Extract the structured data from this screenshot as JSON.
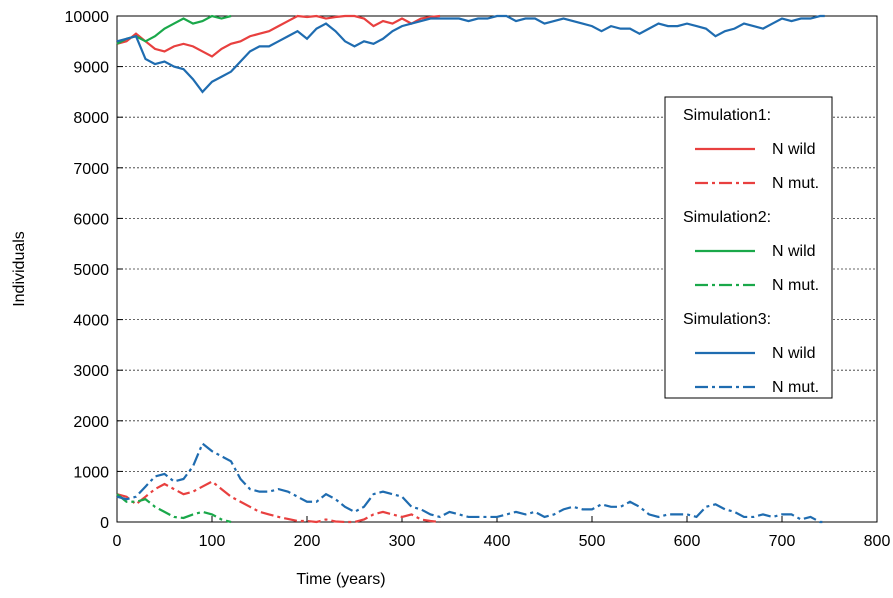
{
  "chart_data": {
    "type": "line",
    "xlabel": "Time (years)",
    "ylabel": "Individuals",
    "xlim": [
      0,
      800
    ],
    "xticks": [
      0,
      100,
      200,
      300,
      400,
      500,
      600,
      700,
      800
    ],
    "ylim": [
      0,
      10000
    ],
    "yticks": [
      0,
      1000,
      2000,
      3000,
      4000,
      5000,
      6000,
      7000,
      8000,
      9000,
      10000
    ],
    "grid": true,
    "legend": "right",
    "series": [
      {
        "group": "Simulation1:",
        "name": "N wild",
        "color": "#e8403f",
        "dash": "solid",
        "x": [
          0,
          10,
          20,
          30,
          40,
          50,
          60,
          70,
          80,
          90,
          100,
          110,
          120,
          130,
          140,
          150,
          160,
          170,
          180,
          190,
          200,
          210,
          220,
          230,
          240,
          250,
          260,
          270,
          280,
          290,
          300,
          310,
          320,
          330,
          340
        ],
        "values": [
          9450,
          9500,
          9650,
          9500,
          9350,
          9300,
          9400,
          9450,
          9400,
          9300,
          9200,
          9350,
          9450,
          9500,
          9600,
          9650,
          9700,
          9800,
          9900,
          10000,
          9980,
          10000,
          9950,
          9980,
          10000,
          10000,
          9950,
          9800,
          9900,
          9850,
          9950,
          9850,
          9950,
          9980,
          10000
        ]
      },
      {
        "group": "Simulation1:",
        "name": "N mut.",
        "color": "#e8403f",
        "dash": "dashdot",
        "x": [
          0,
          10,
          20,
          30,
          40,
          50,
          60,
          70,
          80,
          90,
          100,
          110,
          120,
          130,
          140,
          150,
          160,
          170,
          180,
          190,
          200,
          210,
          220,
          230,
          240,
          250,
          260,
          270,
          280,
          290,
          300,
          310,
          320,
          330,
          340
        ],
        "values": [
          550,
          500,
          350,
          500,
          650,
          750,
          650,
          550,
          600,
          700,
          800,
          650,
          500,
          400,
          300,
          200,
          150,
          100,
          60,
          20,
          20,
          0,
          50,
          10,
          0,
          0,
          50,
          150,
          200,
          150,
          100,
          150,
          50,
          20,
          0
        ]
      },
      {
        "group": "Simulation2:",
        "name": "N wild",
        "color": "#1aa84a",
        "dash": "solid",
        "x": [
          0,
          10,
          20,
          30,
          40,
          50,
          60,
          70,
          80,
          90,
          100,
          110,
          120
        ],
        "values": [
          9450,
          9550,
          9600,
          9500,
          9600,
          9750,
          9850,
          9950,
          9850,
          9900,
          10000,
          9950,
          10000
        ]
      },
      {
        "group": "Simulation2:",
        "name": "N mut.",
        "color": "#1aa84a",
        "dash": "dashdot",
        "x": [
          0,
          10,
          20,
          30,
          40,
          50,
          60,
          70,
          80,
          90,
          100,
          110,
          120
        ],
        "values": [
          550,
          400,
          400,
          450,
          300,
          200,
          100,
          80,
          150,
          200,
          150,
          50,
          0
        ]
      },
      {
        "group": "Simulation3:",
        "name": "N wild",
        "color": "#1f6cb0",
        "dash": "solid",
        "x": [
          0,
          10,
          20,
          30,
          40,
          50,
          60,
          70,
          80,
          90,
          100,
          110,
          120,
          130,
          140,
          150,
          160,
          170,
          180,
          190,
          200,
          210,
          220,
          230,
          240,
          250,
          260,
          270,
          280,
          290,
          300,
          310,
          320,
          330,
          340,
          350,
          360,
          370,
          380,
          390,
          400,
          410,
          420,
          430,
          440,
          450,
          460,
          470,
          480,
          490,
          500,
          510,
          520,
          530,
          540,
          550,
          560,
          570,
          580,
          590,
          600,
          610,
          620,
          630,
          640,
          650,
          660,
          670,
          680,
          690,
          700,
          710,
          720,
          730,
          740,
          745
        ],
        "values": [
          9500,
          9550,
          9600,
          9150,
          9050,
          9100,
          9000,
          8950,
          8750,
          8500,
          8700,
          8800,
          8900,
          9100,
          9300,
          9400,
          9400,
          9500,
          9600,
          9700,
          9550,
          9750,
          9850,
          9700,
          9500,
          9400,
          9500,
          9450,
          9550,
          9700,
          9800,
          9850,
          9900,
          9950,
          9950,
          9950,
          9950,
          9900,
          9950,
          9950,
          10000,
          10000,
          9900,
          9950,
          9950,
          9850,
          9900,
          9950,
          9900,
          9850,
          9800,
          9700,
          9800,
          9750,
          9750,
          9650,
          9750,
          9850,
          9800,
          9800,
          9850,
          9800,
          9750,
          9600,
          9700,
          9750,
          9850,
          9800,
          9750,
          9850,
          9950,
          9900,
          9950,
          9950,
          10000,
          10000
        ]
      },
      {
        "group": "Simulation3:",
        "name": "N mut.",
        "color": "#1f6cb0",
        "dash": "dashdot",
        "x": [
          0,
          10,
          20,
          30,
          40,
          50,
          60,
          70,
          80,
          90,
          100,
          110,
          120,
          130,
          140,
          150,
          160,
          170,
          180,
          190,
          200,
          210,
          220,
          230,
          240,
          250,
          260,
          270,
          280,
          290,
          300,
          310,
          320,
          330,
          340,
          350,
          360,
          370,
          380,
          390,
          400,
          410,
          420,
          430,
          440,
          450,
          460,
          470,
          480,
          490,
          500,
          510,
          520,
          530,
          540,
          550,
          560,
          570,
          580,
          590,
          600,
          610,
          620,
          630,
          640,
          650,
          660,
          670,
          680,
          690,
          700,
          710,
          720,
          730,
          740,
          745
        ],
        "values": [
          500,
          450,
          500,
          700,
          900,
          950,
          800,
          850,
          1100,
          1550,
          1400,
          1300,
          1200,
          850,
          650,
          600,
          600,
          650,
          600,
          500,
          400,
          400,
          550,
          450,
          300,
          200,
          300,
          550,
          600,
          550,
          500,
          300,
          250,
          150,
          100,
          200,
          150,
          100,
          100,
          100,
          100,
          150,
          200,
          150,
          200,
          100,
          150,
          250,
          300,
          250,
          250,
          350,
          300,
          300,
          400,
          300,
          150,
          100,
          150,
          150,
          150,
          100,
          300,
          350,
          250,
          200,
          100,
          100,
          150,
          100,
          150,
          150,
          50,
          100,
          0,
          0
        ]
      }
    ]
  }
}
